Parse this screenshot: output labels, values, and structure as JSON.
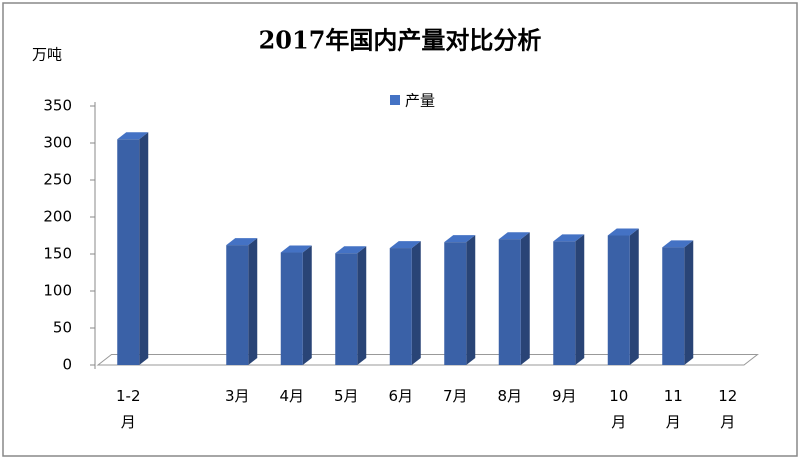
{
  "chart_data": {
    "type": "bar3d",
    "title": "2017年国内产量对比分析",
    "y_label": "万吨",
    "categories": [
      "1-2月",
      null,
      "3月",
      "4月",
      "5月",
      "6月",
      "7月",
      "8月",
      "9月",
      "10月",
      "11月",
      "12月"
    ],
    "series": [
      {
        "name": "产量",
        "color": "#4472c4",
        "values": [
          305,
          null,
          162,
          152,
          151,
          158,
          166,
          170,
          167,
          175,
          159,
          null
        ]
      }
    ],
    "ylim": [
      0,
      350
    ],
    "yticks": [
      0,
      50,
      100,
      150,
      200,
      250,
      300,
      350
    ],
    "legend": "top"
  }
}
